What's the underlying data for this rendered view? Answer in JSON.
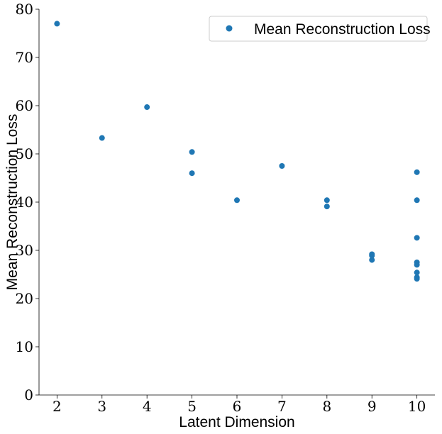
{
  "chart_data": {
    "type": "scatter",
    "title": "",
    "xlabel": "Latent Dimension",
    "ylabel": "Mean Reconstruction Loss",
    "xlim": [
      1.6,
      10.4
    ],
    "ylim": [
      0,
      80
    ],
    "x_ticks": [
      2,
      3,
      4,
      5,
      6,
      7,
      8,
      9,
      10
    ],
    "y_ticks": [
      0,
      10,
      20,
      30,
      40,
      50,
      60,
      70,
      80
    ],
    "grid": false,
    "legend_position": "top-right",
    "series": [
      {
        "name": "Mean Reconstruction Loss",
        "color": "#1f77b4",
        "marker": "circle",
        "points": [
          {
            "x": 2,
            "y": 77.0
          },
          {
            "x": 3,
            "y": 53.3
          },
          {
            "x": 4,
            "y": 59.7
          },
          {
            "x": 5,
            "y": 50.4
          },
          {
            "x": 5,
            "y": 46.0
          },
          {
            "x": 6,
            "y": 40.4
          },
          {
            "x": 7,
            "y": 47.5
          },
          {
            "x": 8,
            "y": 40.4
          },
          {
            "x": 8,
            "y": 39.1
          },
          {
            "x": 9,
            "y": 29.2
          },
          {
            "x": 9,
            "y": 28.9
          },
          {
            "x": 9,
            "y": 28.0
          },
          {
            "x": 10,
            "y": 46.2
          },
          {
            "x": 10,
            "y": 40.4
          },
          {
            "x": 10,
            "y": 32.6
          },
          {
            "x": 10,
            "y": 27.5
          },
          {
            "x": 10,
            "y": 27.0
          },
          {
            "x": 10,
            "y": 25.4
          },
          {
            "x": 10,
            "y": 24.4
          },
          {
            "x": 10,
            "y": 24.1
          }
        ]
      }
    ]
  }
}
